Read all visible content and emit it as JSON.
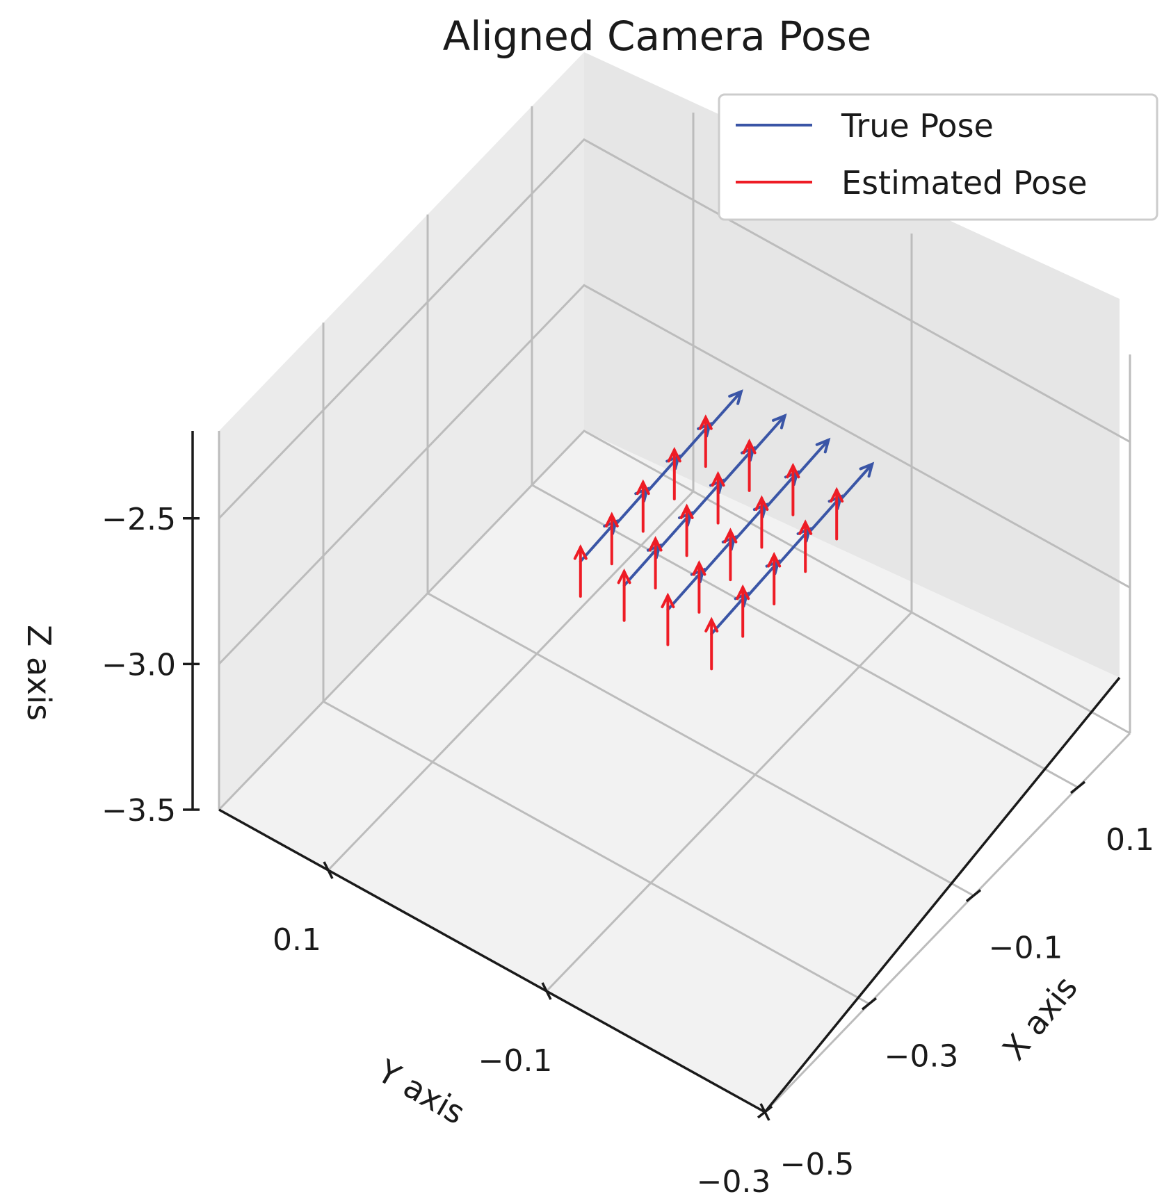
{
  "chart_data": {
    "type": "quiver3d",
    "title": "Aligned Camera Pose",
    "xlabel": "X axis",
    "ylabel": "Y axis",
    "zlabel": "Z axis",
    "xlim": [
      -0.5,
      0.2
    ],
    "ylim": [
      -0.3,
      0.2
    ],
    "zlim": [
      -3.5,
      -2.2
    ],
    "x_ticks": [
      "−0.5",
      "−0.3",
      "−0.1",
      "0.1"
    ],
    "y_ticks": [
      "−0.3",
      "−0.1",
      "0.1"
    ],
    "z_ticks": [
      "−3.5",
      "−3.0",
      "−2.5"
    ],
    "grid": true,
    "legend": {
      "placement": "top-right",
      "entries": [
        {
          "label": "True Pose",
          "color": "#3a55a6"
        },
        {
          "label": "Estimated Pose",
          "color": "#ee1c25"
        }
      ]
    },
    "series": [
      {
        "name": "True Pose",
        "color": "#3a55a6",
        "positions": [
          [
            -0.1,
            0.06,
            -3.1
          ],
          [
            -0.1,
            0.02,
            -3.1
          ],
          [
            -0.1,
            -0.02,
            -3.1
          ],
          [
            -0.1,
            -0.06,
            -3.1
          ],
          [
            -0.04,
            0.06,
            -3.1
          ],
          [
            -0.04,
            0.02,
            -3.1
          ],
          [
            -0.04,
            -0.02,
            -3.1
          ],
          [
            -0.04,
            -0.06,
            -3.1
          ],
          [
            0.02,
            0.06,
            -3.1
          ],
          [
            0.02,
            0.02,
            -3.1
          ],
          [
            0.02,
            -0.02,
            -3.1
          ],
          [
            0.02,
            -0.06,
            -3.1
          ],
          [
            0.08,
            0.06,
            -3.1
          ],
          [
            0.08,
            0.02,
            -3.1
          ],
          [
            0.08,
            -0.02,
            -3.1
          ],
          [
            0.08,
            -0.06,
            -3.1
          ],
          [
            0.14,
            0.06,
            -3.1
          ],
          [
            0.14,
            0.02,
            -3.1
          ],
          [
            0.14,
            -0.02,
            -3.1
          ],
          [
            0.14,
            -0.06,
            -3.1
          ]
        ],
        "direction": [
          0.85,
          0.0,
          0.15
        ]
      },
      {
        "name": "Estimated Pose",
        "color": "#ee1c25",
        "positions": [
          [
            -0.1,
            0.06,
            -3.22
          ],
          [
            -0.1,
            0.02,
            -3.22
          ],
          [
            -0.1,
            -0.02,
            -3.22
          ],
          [
            -0.1,
            -0.06,
            -3.22
          ],
          [
            -0.04,
            0.06,
            -3.22
          ],
          [
            -0.04,
            0.02,
            -3.22
          ],
          [
            -0.04,
            -0.02,
            -3.22
          ],
          [
            -0.04,
            -0.06,
            -3.22
          ],
          [
            0.02,
            0.06,
            -3.22
          ],
          [
            0.02,
            0.02,
            -3.22
          ],
          [
            0.02,
            -0.02,
            -3.22
          ],
          [
            0.02,
            -0.06,
            -3.22
          ],
          [
            0.08,
            0.06,
            -3.22
          ],
          [
            0.08,
            0.02,
            -3.22
          ],
          [
            0.08,
            -0.02,
            -3.22
          ],
          [
            0.08,
            -0.06,
            -3.22
          ],
          [
            0.14,
            0.06,
            -3.22
          ],
          [
            0.14,
            0.02,
            -3.22
          ],
          [
            0.14,
            -0.02,
            -3.22
          ],
          [
            0.14,
            -0.06,
            -3.22
          ]
        ],
        "direction": [
          0.0,
          0.0,
          1.0
        ]
      }
    ]
  }
}
